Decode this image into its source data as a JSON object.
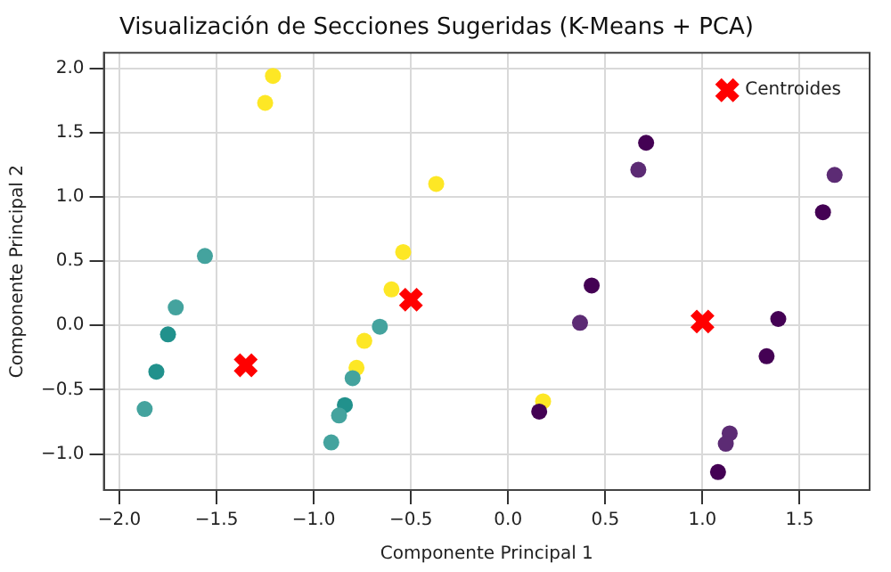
{
  "chart_data": {
    "type": "scatter",
    "title": "Visualización de Secciones Sugeridas (K-Means + PCA)",
    "xlabel": "Componente Principal 1",
    "ylabel": "Componente Principal 2",
    "xlim": [
      -2.08,
      1.86
    ],
    "ylim": [
      -1.28,
      2.12
    ],
    "xticks": [
      {
        "value": -2,
        "label": "−2.0"
      },
      {
        "value": -1.5,
        "label": "−1.5"
      },
      {
        "value": -1,
        "label": "−1.0"
      },
      {
        "value": -0.5,
        "label": "−0.5"
      },
      {
        "value": 0,
        "label": "0.0"
      },
      {
        "value": 0.5,
        "label": "0.5"
      },
      {
        "value": 1,
        "label": "1.0"
      },
      {
        "value": 1.5,
        "label": "1.5"
      }
    ],
    "yticks": [
      {
        "value": -1,
        "label": "−1.0"
      },
      {
        "value": -0.5,
        "label": "−0.5"
      },
      {
        "value": 0,
        "label": "0.0"
      },
      {
        "value": 0.5,
        "label": "0.5"
      },
      {
        "value": 1,
        "label": "1.0"
      },
      {
        "value": 1.5,
        "label": "1.5"
      },
      {
        "value": 2,
        "label": "2.0"
      }
    ],
    "grid": true,
    "legend": "top right",
    "marker": "circle",
    "series": [
      {
        "x": [
          0.71,
          0.67,
          1.68,
          1.62,
          0.43,
          0.37,
          1.39,
          1.33,
          0.16,
          1.14,
          1.12,
          1.08
        ],
        "values": [
          1.42,
          1.21,
          1.17,
          0.88,
          0.31,
          0.02,
          0.05,
          -0.24,
          -0.67,
          -0.84,
          -0.92,
          -1.14
        ],
        "colors": [
          "#440154",
          "#5c2b74",
          "#5c2b74",
          "#440154",
          "#440154",
          "#5c2b74",
          "#440154",
          "#440154",
          "#440154",
          "#5c2b74",
          "#5c2b74",
          "#440154"
        ]
      },
      {
        "x": [
          -1.56,
          -1.71,
          -1.75,
          -1.81,
          -1.87,
          -0.66,
          -0.8,
          -0.84,
          -0.87,
          -0.91
        ],
        "values": [
          0.54,
          0.14,
          -0.07,
          -0.36,
          -0.65,
          -0.01,
          -0.41,
          -0.62,
          -0.7,
          -0.91
        ],
        "colors": [
          "#44a39e",
          "#44a39e",
          "#21918c",
          "#21918c",
          "#44a39e",
          "#44a39e",
          "#44a39e",
          "#21918c",
          "#44a39e",
          "#44a39e"
        ]
      },
      {
        "x": [
          -1.21,
          -1.25,
          -0.37,
          -0.54,
          -0.6,
          -0.74,
          -0.78,
          0.18
        ],
        "values": [
          1.94,
          1.73,
          1.1,
          0.57,
          0.28,
          -0.12,
          -0.33,
          -0.59
        ],
        "color": "#fde725"
      },
      {
        "name": "Centroides",
        "marker": "cross",
        "x": [
          -1.35,
          -0.5,
          1.0
        ],
        "values": [
          -0.31,
          0.2,
          0.03
        ],
        "color": "#ff0000"
      }
    ]
  }
}
